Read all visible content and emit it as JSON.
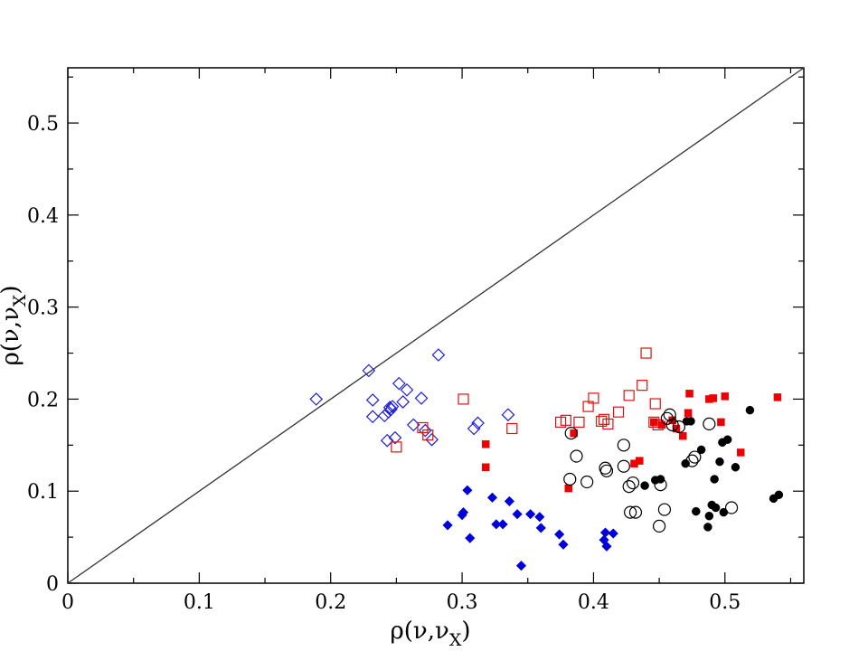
{
  "chart_data": {
    "type": "scatter",
    "xlabel": "ρ(ν,ν",
    "xlabel_sub": "X",
    "xlabel_close": ")",
    "ylabel": "ρ(ν,ν",
    "ylabel_sub": "X",
    "ylabel_close": ")",
    "xlim": [
      0,
      0.56
    ],
    "ylim": [
      0,
      0.56
    ],
    "x_ticks": [
      0,
      0.1,
      0.2,
      0.3,
      0.4,
      0.5
    ],
    "x_tick_labels": [
      "0",
      "0.1",
      "0.2",
      "0.3",
      "0.4",
      "0.5"
    ],
    "y_ticks": [
      0,
      0.1,
      0.2,
      0.3,
      0.4,
      0.5
    ],
    "y_tick_labels": [
      "0",
      "0.1",
      "0.2",
      "0.3",
      "0.4",
      "0.5"
    ],
    "grid": false,
    "reference_line": {
      "from": [
        0,
        0
      ],
      "to": [
        0.56,
        0.56
      ],
      "color": "#333333"
    },
    "series": [
      {
        "marker": "diamond-open",
        "color": "#1f1fe0",
        "points": [
          [
            0.189,
            0.2
          ],
          [
            0.229,
            0.231
          ],
          [
            0.232,
            0.199
          ],
          [
            0.232,
            0.181
          ],
          [
            0.241,
            0.182
          ],
          [
            0.244,
            0.186
          ],
          [
            0.245,
            0.191
          ],
          [
            0.246,
            0.189
          ],
          [
            0.247,
            0.192
          ],
          [
            0.243,
            0.155
          ],
          [
            0.249,
            0.158
          ],
          [
            0.252,
            0.217
          ],
          [
            0.255,
            0.197
          ],
          [
            0.258,
            0.21
          ],
          [
            0.263,
            0.172
          ],
          [
            0.269,
            0.201
          ],
          [
            0.272,
            0.166
          ],
          [
            0.277,
            0.156
          ],
          [
            0.282,
            0.248
          ],
          [
            0.309,
            0.168
          ],
          [
            0.312,
            0.174
          ],
          [
            0.335,
            0.183
          ]
        ]
      },
      {
        "marker": "diamond-filled",
        "color": "#0000dd",
        "points": [
          [
            0.289,
            0.063
          ],
          [
            0.3,
            0.074
          ],
          [
            0.301,
            0.077
          ],
          [
            0.304,
            0.101
          ],
          [
            0.306,
            0.049
          ],
          [
            0.323,
            0.093
          ],
          [
            0.326,
            0.064
          ],
          [
            0.331,
            0.064
          ],
          [
            0.336,
            0.089
          ],
          [
            0.342,
            0.075
          ],
          [
            0.345,
            0.019
          ],
          [
            0.352,
            0.075
          ],
          [
            0.359,
            0.072
          ],
          [
            0.36,
            0.06
          ],
          [
            0.374,
            0.053
          ],
          [
            0.377,
            0.042
          ],
          [
            0.408,
            0.047
          ],
          [
            0.409,
            0.055
          ],
          [
            0.41,
            0.04
          ],
          [
            0.415,
            0.054
          ]
        ]
      },
      {
        "marker": "square-open",
        "color": "#e01010",
        "points": [
          [
            0.25,
            0.148
          ],
          [
            0.27,
            0.169
          ],
          [
            0.274,
            0.161
          ],
          [
            0.301,
            0.2
          ],
          [
            0.338,
            0.168
          ],
          [
            0.375,
            0.175
          ],
          [
            0.379,
            0.177
          ],
          [
            0.389,
            0.175
          ],
          [
            0.396,
            0.192
          ],
          [
            0.4,
            0.201
          ],
          [
            0.406,
            0.176
          ],
          [
            0.408,
            0.178
          ],
          [
            0.411,
            0.173
          ],
          [
            0.419,
            0.186
          ],
          [
            0.427,
            0.204
          ],
          [
            0.437,
            0.215
          ],
          [
            0.44,
            0.25
          ],
          [
            0.446,
            0.175
          ],
          [
            0.447,
            0.195
          ],
          [
            0.449,
            0.172
          ]
        ]
      },
      {
        "marker": "square-filled",
        "color": "#ee0000",
        "points": [
          [
            0.318,
            0.151
          ],
          [
            0.318,
            0.126
          ],
          [
            0.381,
            0.103
          ],
          [
            0.385,
            0.163
          ],
          [
            0.431,
            0.13
          ],
          [
            0.435,
            0.133
          ],
          [
            0.446,
            0.175
          ],
          [
            0.452,
            0.172
          ],
          [
            0.46,
            0.177
          ],
          [
            0.463,
            0.168
          ],
          [
            0.468,
            0.16
          ],
          [
            0.472,
            0.185
          ],
          [
            0.473,
            0.206
          ],
          [
            0.488,
            0.2
          ],
          [
            0.491,
            0.201
          ],
          [
            0.497,
            0.175
          ],
          [
            0.5,
            0.203
          ],
          [
            0.512,
            0.142
          ],
          [
            0.54,
            0.202
          ]
        ]
      },
      {
        "marker": "circle-open",
        "color": "#000000",
        "points": [
          [
            0.382,
            0.113
          ],
          [
            0.383,
            0.163
          ],
          [
            0.387,
            0.138
          ],
          [
            0.395,
            0.11
          ],
          [
            0.409,
            0.125
          ],
          [
            0.41,
            0.122
          ],
          [
            0.423,
            0.15
          ],
          [
            0.423,
            0.127
          ],
          [
            0.427,
            0.105
          ],
          [
            0.428,
            0.077
          ],
          [
            0.43,
            0.109
          ],
          [
            0.432,
            0.077
          ],
          [
            0.45,
            0.062
          ],
          [
            0.451,
            0.107
          ],
          [
            0.454,
            0.08
          ],
          [
            0.456,
            0.179
          ],
          [
            0.458,
            0.183
          ],
          [
            0.46,
            0.172
          ],
          [
            0.465,
            0.17
          ],
          [
            0.475,
            0.133
          ],
          [
            0.477,
            0.137
          ],
          [
            0.488,
            0.173
          ],
          [
            0.505,
            0.082
          ]
        ]
      },
      {
        "marker": "circle-filled",
        "color": "#000000",
        "points": [
          [
            0.439,
            0.106
          ],
          [
            0.447,
            0.112
          ],
          [
            0.451,
            0.113
          ],
          [
            0.47,
            0.13
          ],
          [
            0.471,
            0.176
          ],
          [
            0.474,
            0.176
          ],
          [
            0.478,
            0.078
          ],
          [
            0.482,
            0.145
          ],
          [
            0.487,
            0.061
          ],
          [
            0.488,
            0.073
          ],
          [
            0.49,
            0.085
          ],
          [
            0.492,
            0.113
          ],
          [
            0.493,
            0.082
          ],
          [
            0.496,
            0.132
          ],
          [
            0.498,
            0.153
          ],
          [
            0.499,
            0.077
          ],
          [
            0.502,
            0.156
          ],
          [
            0.508,
            0.126
          ],
          [
            0.519,
            0.188
          ],
          [
            0.537,
            0.092
          ],
          [
            0.541,
            0.096
          ]
        ]
      }
    ]
  }
}
